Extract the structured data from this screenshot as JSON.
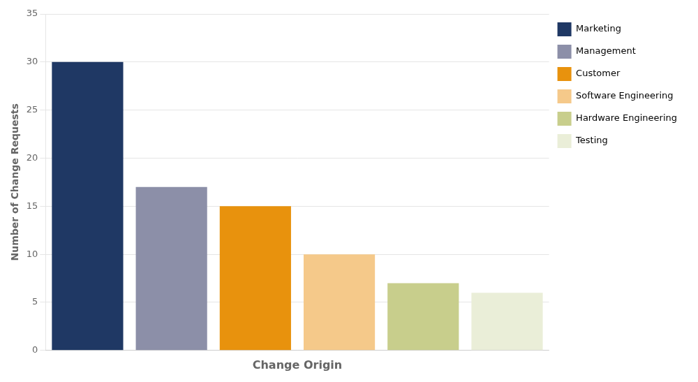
{
  "chart_data": {
    "type": "bar",
    "categories": [
      "Marketing",
      "Management",
      "Customer",
      "Software Engineering",
      "Hardware Engineering",
      "Testing"
    ],
    "values": [
      30,
      17,
      15,
      10,
      7,
      6
    ],
    "colors": [
      "#1f3864",
      "#8c8fa8",
      "#e8920d",
      "#f5c98a",
      "#c8ce8c",
      "#eaeed8"
    ],
    "xlabel": "Change Origin",
    "ylabel": "Number of Change Requests",
    "ylim": [
      0,
      35
    ],
    "yticks": [
      0,
      5,
      10,
      15,
      20,
      25,
      30,
      35
    ],
    "grid": true,
    "legend": "right",
    "tick_labels": "y"
  }
}
